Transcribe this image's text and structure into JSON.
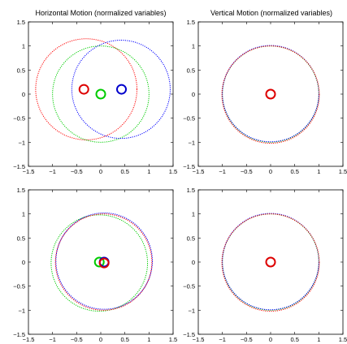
{
  "chart_data": [
    {
      "type": "scatter",
      "title": "Horizontal Motion (normalized variables)",
      "xlim": [
        -1.5,
        1.5
      ],
      "ylim": [
        -1.5,
        1.5
      ],
      "x_ticks": [
        "−1.5",
        "−1",
        "−0.5",
        "0",
        "0.5",
        "1",
        "1.5"
      ],
      "y_ticks": [
        "1.5",
        "1",
        "0.5",
        "0",
        "−0.5",
        "−1",
        "−1.5"
      ],
      "grid": false,
      "curves": [
        {
          "color": "#ff0000",
          "cx": -0.3,
          "cy": 0.1,
          "r": 1.05
        },
        {
          "color": "#00cc00",
          "cx": 0.0,
          "cy": 0.0,
          "r": 1.0
        },
        {
          "color": "#0000ff",
          "cx": 0.42,
          "cy": 0.1,
          "r": 1.02
        }
      ],
      "markers": [
        {
          "color": "#dd0000",
          "x": -0.35,
          "y": 0.1
        },
        {
          "color": "#00cc00",
          "x": 0.0,
          "y": 0.0
        },
        {
          "color": "#0000cc",
          "x": 0.43,
          "y": 0.1
        }
      ]
    },
    {
      "type": "scatter",
      "title": "Vertical Motion (normalized variables)",
      "xlim": [
        -1.5,
        1.5
      ],
      "ylim": [
        -1.5,
        1.5
      ],
      "x_ticks": [
        "−1.5",
        "−1",
        "−0.5",
        "0",
        "0.5",
        "1",
        "1.5"
      ],
      "y_ticks": [
        "1.5",
        "1",
        "0.5",
        "0",
        "−0.5",
        "−1",
        "−1.5"
      ],
      "grid": false,
      "curves": [
        {
          "color": "#00cc00",
          "cx": 0.0,
          "cy": 0.0,
          "r": 1.0
        },
        {
          "color": "#0000ff",
          "cx": 0.0,
          "cy": 0.01,
          "r": 1.0
        },
        {
          "color": "#ff0000",
          "cx": 0.0,
          "cy": -0.01,
          "r": 1.01
        }
      ],
      "markers": [
        {
          "color": "#dd0000",
          "x": 0.0,
          "y": 0.0
        }
      ]
    },
    {
      "type": "scatter",
      "title": "",
      "xlim": [
        -1.5,
        1.5
      ],
      "ylim": [
        -1.5,
        1.5
      ],
      "x_ticks": [
        "−1.5",
        "−1",
        "−0.5",
        "0",
        "0.5",
        "1",
        "1.5"
      ],
      "y_ticks": [
        "1.5",
        "1",
        "0.5",
        "0",
        "−0.5",
        "−1",
        "−1.5"
      ],
      "grid": false,
      "curves": [
        {
          "color": "#00cc00",
          "cx": -0.03,
          "cy": -0.02,
          "r": 1.0
        },
        {
          "color": "#0000ff",
          "cx": 0.07,
          "cy": 0.02,
          "r": 1.0
        },
        {
          "color": "#ff0000",
          "cx": 0.06,
          "cy": 0.0,
          "r": 1.0
        }
      ],
      "markers": [
        {
          "color": "#00cc00",
          "x": -0.03,
          "y": 0.0
        },
        {
          "color": "#0000cc",
          "x": 0.07,
          "y": 0.0
        },
        {
          "color": "#dd0000",
          "x": 0.07,
          "y": -0.02
        }
      ]
    },
    {
      "type": "scatter",
      "title": "",
      "xlim": [
        -1.5,
        1.5
      ],
      "ylim": [
        -1.5,
        1.5
      ],
      "x_ticks": [
        "−1.5",
        "−1",
        "−0.5",
        "0",
        "0.5",
        "1",
        "1.5"
      ],
      "y_ticks": [
        "1.5",
        "1",
        "0.5",
        "0",
        "−0.5",
        "−1",
        "−1.5"
      ],
      "grid": false,
      "curves": [
        {
          "color": "#00cc00",
          "cx": 0.0,
          "cy": 0.0,
          "r": 1.0
        },
        {
          "color": "#0000ff",
          "cx": 0.0,
          "cy": 0.01,
          "r": 1.0
        },
        {
          "color": "#ff0000",
          "cx": 0.0,
          "cy": -0.01,
          "r": 1.01
        }
      ],
      "markers": [
        {
          "color": "#dd0000",
          "x": 0.0,
          "y": 0.0
        }
      ]
    }
  ]
}
